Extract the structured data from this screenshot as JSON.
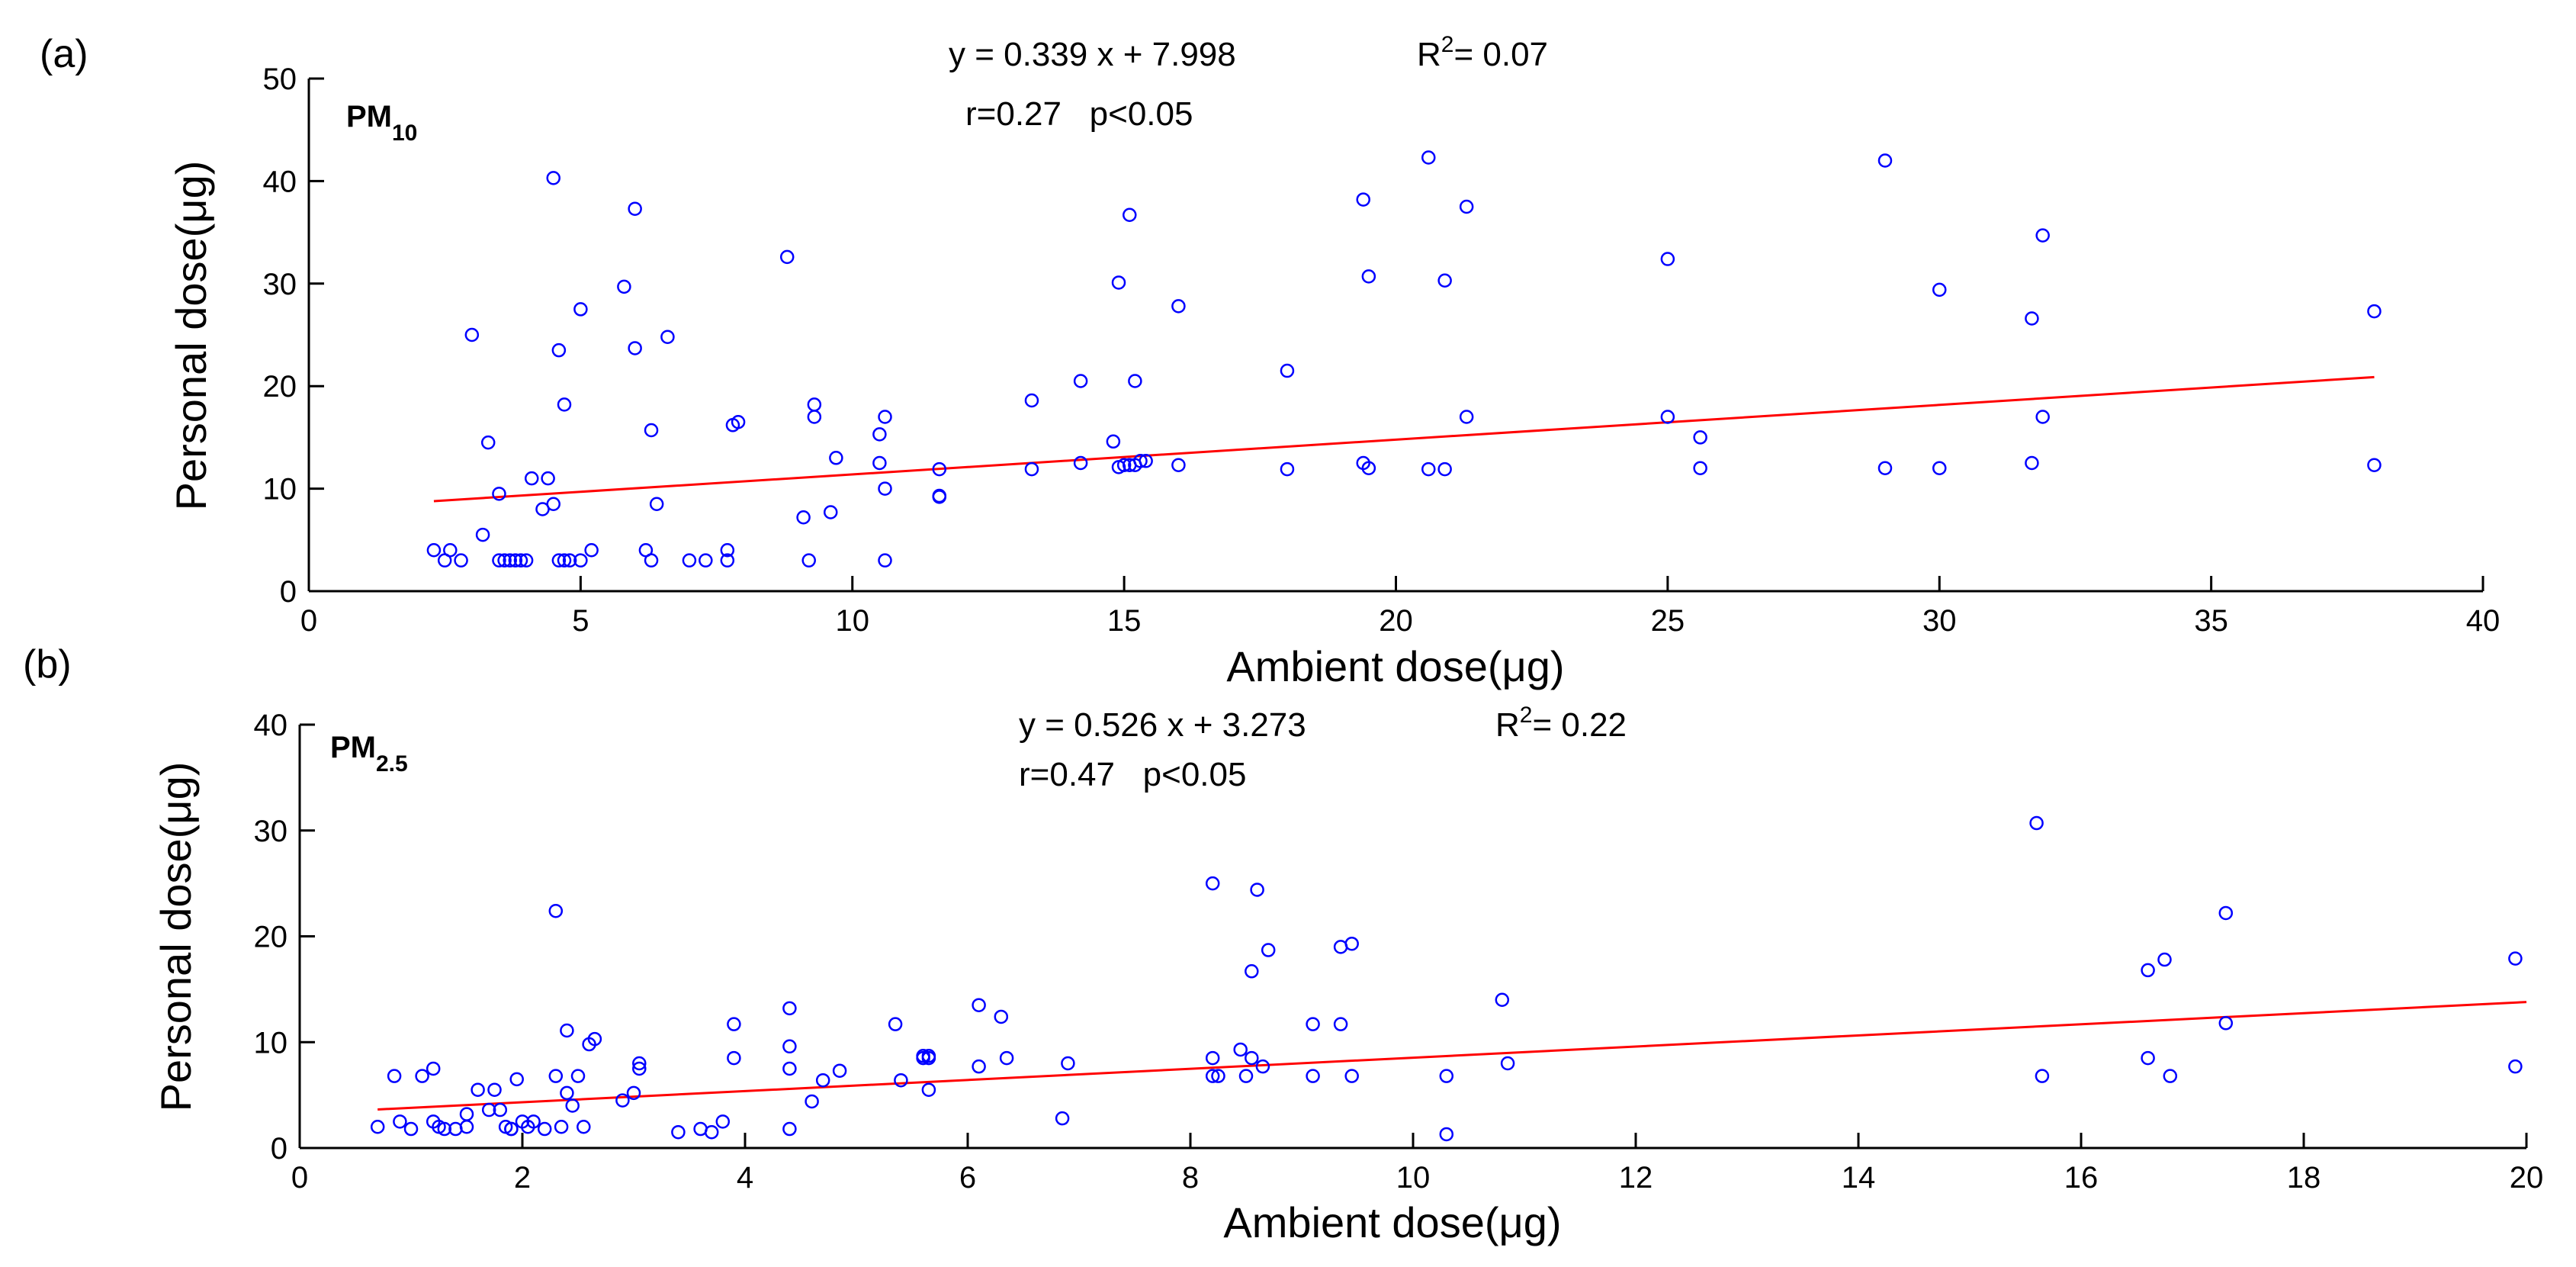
{
  "chart_data": [
    {
      "type": "scatter",
      "panel_label": "(a)",
      "species": {
        "main": "PM",
        "sub": "10"
      },
      "xlabel": "Ambient dose(μg)",
      "ylabel": "Personal dose(μg)",
      "xlim": [
        0,
        40
      ],
      "ylim": [
        0,
        50
      ],
      "xticks": [
        0,
        5,
        10,
        15,
        20,
        25,
        30,
        35,
        40
      ],
      "yticks": [
        0,
        10,
        20,
        30,
        40,
        50
      ],
      "equation": "y = 0.339 x + 7.998",
      "r2_label": "R",
      "r2_exp": "2",
      "r2_value": "= 0.07",
      "stats": "r=0.27   p<0.05",
      "fit": {
        "slope": 0.339,
        "intercept": 7.998,
        "x_range": [
          2.3,
          38
        ]
      },
      "points": {
        "x": [
          2.3,
          2.5,
          2.6,
          2.8,
          3.0,
          3.2,
          3.3,
          3.5,
          3.5,
          3.6,
          3.7,
          3.8,
          3.9,
          4.0,
          4.1,
          4.3,
          4.4,
          4.5,
          4.5,
          4.6,
          4.6,
          4.7,
          4.7,
          4.8,
          5.0,
          5.0,
          5.2,
          5.8,
          6.0,
          6.0,
          6.2,
          6.3,
          6.3,
          6.4,
          6.6,
          7.0,
          7.3,
          7.7,
          7.7,
          7.8,
          7.9,
          8.8,
          9.1,
          9.2,
          9.3,
          9.3,
          9.6,
          9.7,
          10.5,
          10.5,
          10.6,
          10.6,
          10.6,
          11.6,
          11.6,
          11.6,
          13.3,
          13.3,
          14.2,
          14.2,
          14.8,
          14.9,
          14.9,
          15.0,
          15.1,
          15.1,
          15.2,
          15.2,
          15.3,
          15.4,
          16.0,
          16.0,
          18.0,
          18.0,
          19.4,
          19.4,
          19.5,
          19.5,
          20.6,
          20.6,
          20.9,
          20.9,
          21.3,
          21.3,
          25.0,
          25.0,
          25.6,
          25.6,
          29.0,
          29.0,
          30.0,
          30.0,
          31.7,
          31.7,
          31.9,
          31.9,
          38.0,
          38.0
        ],
        "y": [
          4,
          3,
          4,
          3,
          25,
          5.5,
          14.5,
          9.5,
          3,
          3,
          3,
          3,
          3,
          3,
          11,
          8,
          11,
          8.5,
          40.3,
          23.5,
          3,
          18.2,
          3,
          3,
          27.5,
          3,
          4,
          29.7,
          23.7,
          37.3,
          4,
          3,
          15.7,
          8.5,
          24.8,
          3,
          3,
          4,
          3,
          16.2,
          16.5,
          32.6,
          7.2,
          3,
          17,
          18.2,
          7.7,
          13,
          15.3,
          12.5,
          17,
          10,
          3,
          11.9,
          9.2,
          9.3,
          18.6,
          11.9,
          20.5,
          12.5,
          14.6,
          12.1,
          30.1,
          12.3,
          12.3,
          36.7,
          20.5,
          12.3,
          12.7,
          12.7,
          27.8,
          12.3,
          21.5,
          11.9,
          38.2,
          12.5,
          30.7,
          12,
          42.3,
          11.9,
          30.3,
          11.9,
          37.5,
          17,
          32.4,
          17,
          15,
          12,
          42,
          12,
          29.4,
          12,
          26.6,
          12.5,
          34.7,
          17,
          27.3,
          12.3
        ]
      }
    },
    {
      "type": "scatter",
      "panel_label": "(b)",
      "species": {
        "main": "PM",
        "sub": "2.5"
      },
      "xlabel": "Ambient dose(μg)",
      "ylabel": "Personal dose(μg)",
      "xlim": [
        0,
        20
      ],
      "ylim": [
        0,
        40
      ],
      "xticks": [
        0,
        2,
        4,
        6,
        8,
        10,
        12,
        14,
        16,
        18,
        20
      ],
      "yticks": [
        0,
        10,
        20,
        30,
        40
      ],
      "equation": "y = 0.526 x + 3.273",
      "r2_label": "R",
      "r2_exp": "2",
      "r2_value": "= 0.22",
      "stats": "r=0.47   p<0.05",
      "fit": {
        "slope": 0.526,
        "intercept": 3.273,
        "x_range": [
          0.7,
          20
        ]
      },
      "points": {
        "x": [
          0.7,
          0.85,
          0.9,
          1.0,
          1.1,
          1.2,
          1.2,
          1.25,
          1.3,
          1.4,
          1.5,
          1.5,
          1.6,
          1.7,
          1.75,
          1.8,
          1.85,
          1.9,
          1.9,
          1.95,
          2.0,
          2.05,
          2.1,
          2.2,
          2.3,
          2.3,
          2.35,
          2.4,
          2.4,
          2.45,
          2.5,
          2.55,
          2.6,
          2.65,
          2.9,
          3.0,
          3.05,
          3.05,
          3.4,
          3.6,
          3.7,
          3.8,
          3.9,
          3.9,
          4.4,
          4.4,
          4.4,
          4.4,
          4.6,
          4.7,
          4.85,
          5.35,
          5.4,
          5.6,
          5.6,
          5.65,
          5.65,
          5.65,
          6.1,
          6.1,
          6.3,
          6.35,
          6.85,
          6.9,
          8.2,
          8.2,
          8.2,
          8.25,
          8.45,
          8.5,
          8.55,
          8.55,
          8.6,
          8.65,
          8.7,
          9.1,
          9.1,
          9.35,
          9.35,
          9.45,
          9.45,
          10.3,
          10.3,
          10.8,
          10.85,
          15.6,
          15.65,
          16.6,
          16.6,
          16.75,
          16.8,
          17.3,
          17.3,
          19.9,
          19.9
        ],
        "y": [
          2,
          6.8,
          2.5,
          1.8,
          6.8,
          2.5,
          7.5,
          2,
          1.8,
          1.8,
          2,
          3.2,
          5.5,
          3.6,
          5.5,
          3.6,
          2,
          1.8,
          1.8,
          6.5,
          2.5,
          2,
          2.5,
          1.8,
          22.4,
          6.8,
          2,
          5.2,
          11.1,
          4,
          6.8,
          2,
          9.8,
          10.3,
          4.5,
          5.2,
          8,
          7.5,
          1.5,
          1.8,
          1.5,
          2.5,
          11.7,
          8.5,
          13.2,
          9.6,
          7.5,
          1.8,
          4.4,
          6.4,
          7.3,
          11.7,
          6.4,
          8.5,
          8.7,
          8.5,
          8.7,
          5.5,
          13.5,
          7.7,
          12.4,
          8.5,
          2.8,
          8,
          25,
          8.5,
          6.8,
          6.8,
          9.3,
          6.8,
          16.7,
          8.5,
          24.4,
          7.7,
          18.7,
          11.7,
          6.8,
          11.7,
          19,
          19.3,
          6.8,
          6.8,
          1.3,
          14,
          8,
          30.7,
          6.8,
          16.8,
          8.5,
          17.8,
          6.8,
          22.2,
          11.8,
          17.9,
          7.7
        ]
      }
    }
  ]
}
